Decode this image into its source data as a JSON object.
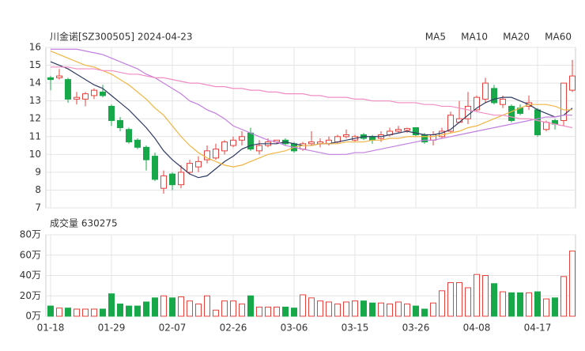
{
  "chart_data": [
    {
      "type": "candlestick",
      "title": "川金诺[SZ300505] 2024-04-23",
      "categories": [
        "01-18",
        null,
        null,
        null,
        null,
        null,
        null,
        "01-29",
        null,
        null,
        null,
        null,
        null,
        null,
        "02-07",
        null,
        null,
        null,
        null,
        null,
        null,
        "02-26",
        null,
        null,
        null,
        null,
        null,
        null,
        "03-06",
        null,
        null,
        null,
        null,
        null,
        null,
        "03-15",
        null,
        null,
        null,
        null,
        null,
        null,
        "03-26",
        null,
        null,
        null,
        null,
        null,
        null,
        "04-08",
        null,
        null,
        null,
        null,
        null,
        null,
        "04-17",
        null,
        null,
        null,
        null
      ],
      "open": [
        14.3,
        14.3,
        14.2,
        13.1,
        13.1,
        13.3,
        13.5,
        12.7,
        11.9,
        11.4,
        10.8,
        10.4,
        9.9,
        8.1,
        8.9,
        8.3,
        9.0,
        9.3,
        9.7,
        9.8,
        10.2,
        10.5,
        10.8,
        11.2,
        10.2,
        10.5,
        10.7,
        10.8,
        10.6,
        10.3,
        10.6,
        10.6,
        10.6,
        10.7,
        11.0,
        10.8,
        11.1,
        11.0,
        10.9,
        11.1,
        11.3,
        11.35,
        11.5,
        11.1,
        10.8,
        11.0,
        11.3,
        11.8,
        12.0,
        12.5,
        13.1,
        13.7,
        12.8,
        12.7,
        12.6,
        12.7,
        12.5,
        11.4,
        11.9,
        11.9,
        13.6
      ],
      "high": [
        14.4,
        14.8,
        14.3,
        13.5,
        13.5,
        13.7,
        13.9,
        12.8,
        12.1,
        11.5,
        10.9,
        10.5,
        10.1,
        9.1,
        9.0,
        9.4,
        9.7,
        9.9,
        10.5,
        10.6,
        10.8,
        11.0,
        11.3,
        11.5,
        10.8,
        10.9,
        10.8,
        10.9,
        10.7,
        10.7,
        11.3,
        10.9,
        11.0,
        11.1,
        11.4,
        11.1,
        11.2,
        11.1,
        11.3,
        11.5,
        11.6,
        11.5,
        11.5,
        11.2,
        11.3,
        11.5,
        12.4,
        13.0,
        13.5,
        13.3,
        14.3,
        13.9,
        13.3,
        12.8,
        12.8,
        13.3,
        12.6,
        11.9,
        12.0,
        14.0,
        15.3
      ],
      "low": [
        13.6,
        14.2,
        12.9,
        12.8,
        12.7,
        13.1,
        13.2,
        11.6,
        11.3,
        10.6,
        10.3,
        9.1,
        8.5,
        7.8,
        8.0,
        8.1,
        8.9,
        9.0,
        9.5,
        9.7,
        10.0,
        10.4,
        10.5,
        10.2,
        10.0,
        10.4,
        10.6,
        10.5,
        10.1,
        10.2,
        10.5,
        10.4,
        10.5,
        10.6,
        10.9,
        10.7,
        10.8,
        10.6,
        10.7,
        11.0,
        11.2,
        11.2,
        11.0,
        10.6,
        10.5,
        10.9,
        11.2,
        11.8,
        11.7,
        12.4,
        12.9,
        12.8,
        12.6,
        11.8,
        12.2,
        12.5,
        11.0,
        11.3,
        11.4,
        11.6,
        13.5
      ],
      "close": [
        14.2,
        14.4,
        13.1,
        13.2,
        13.4,
        13.6,
        13.3,
        11.9,
        11.5,
        10.7,
        10.4,
        9.7,
        8.6,
        8.8,
        8.3,
        9.0,
        9.5,
        9.6,
        10.2,
        10.3,
        10.7,
        10.8,
        11.0,
        10.3,
        10.5,
        10.7,
        10.8,
        10.6,
        10.2,
        10.6,
        10.7,
        10.7,
        10.8,
        11.0,
        11.1,
        11.0,
        10.9,
        10.8,
        11.1,
        11.3,
        11.4,
        11.45,
        11.1,
        10.7,
        11.1,
        11.3,
        12.2,
        12.0,
        12.7,
        13.2,
        14.0,
        12.9,
        13.1,
        11.9,
        12.3,
        12.9,
        11.1,
        11.8,
        11.7,
        14.0,
        14.4
      ],
      "up_color": "#e8413c",
      "down_color": "#17a84a",
      "series": [
        {
          "name": "MA5",
          "color": "#2f3b63",
          "values": [
            15.2,
            15.0,
            14.8,
            14.5,
            14.2,
            13.9,
            13.7,
            13.3,
            12.9,
            12.5,
            12.0,
            11.5,
            10.9,
            10.2,
            9.7,
            9.3,
            8.9,
            8.7,
            8.8,
            9.2,
            9.6,
            9.9,
            10.3,
            10.5,
            10.6,
            10.6,
            10.6,
            10.7,
            10.6,
            10.5,
            10.5,
            10.6,
            10.6,
            10.7,
            10.8,
            10.9,
            11.0,
            11.0,
            11.0,
            11.1,
            11.2,
            11.3,
            11.2,
            11.1,
            11.1,
            11.2,
            11.4,
            11.8,
            12.2,
            12.6,
            12.9,
            13.1,
            13.2,
            13.2,
            13.0,
            12.8,
            12.5,
            12.3,
            12.1,
            12.2,
            12.6
          ]
        },
        {
          "name": "MA10",
          "color": "#f2b544",
          "values": [
            15.8,
            15.6,
            15.4,
            15.2,
            15.0,
            14.9,
            14.7,
            14.5,
            14.2,
            13.9,
            13.5,
            13.1,
            12.6,
            12.2,
            11.6,
            11.0,
            10.5,
            10.1,
            9.8,
            9.6,
            9.4,
            9.3,
            9.4,
            9.6,
            9.8,
            10.0,
            10.1,
            10.2,
            10.4,
            10.5,
            10.5,
            10.6,
            10.6,
            10.6,
            10.7,
            10.7,
            10.7,
            10.8,
            10.8,
            10.9,
            10.9,
            11.0,
            11.0,
            11.0,
            11.0,
            11.1,
            11.2,
            11.3,
            11.5,
            11.6,
            11.8,
            12.0,
            12.2,
            12.4,
            12.6,
            12.8,
            12.8,
            12.8,
            12.7,
            12.5,
            12.5
          ]
        },
        {
          "name": "MA20",
          "color": "#c27fe0",
          "values": [
            15.9,
            15.9,
            15.9,
            15.9,
            15.8,
            15.7,
            15.6,
            15.4,
            15.2,
            15.0,
            14.8,
            14.5,
            14.3,
            14.0,
            13.7,
            13.4,
            13.0,
            12.8,
            12.5,
            12.3,
            12.0,
            11.6,
            11.4,
            11.2,
            11.0,
            10.8,
            10.7,
            10.5,
            10.4,
            10.3,
            10.2,
            10.1,
            10.0,
            10.0,
            10.0,
            10.1,
            10.1,
            10.2,
            10.3,
            10.4,
            10.5,
            10.6,
            10.7,
            10.8,
            10.8,
            10.9,
            11.0,
            11.1,
            11.2,
            11.3,
            11.4,
            11.5,
            11.6,
            11.7,
            11.8,
            11.9,
            12.0,
            12.1,
            12.1,
            12.2,
            12.2
          ]
        },
        {
          "name": "MA60",
          "color": "#f08cc4",
          "values": [
            14.9,
            14.9,
            14.9,
            14.8,
            14.8,
            14.8,
            14.7,
            14.7,
            14.6,
            14.5,
            14.5,
            14.4,
            14.3,
            14.3,
            14.2,
            14.1,
            14.0,
            14.0,
            13.9,
            13.8,
            13.8,
            13.7,
            13.7,
            13.6,
            13.6,
            13.5,
            13.5,
            13.4,
            13.4,
            13.4,
            13.3,
            13.3,
            13.2,
            13.2,
            13.2,
            13.1,
            13.1,
            13.0,
            13.0,
            13.0,
            12.9,
            12.9,
            12.9,
            12.8,
            12.8,
            12.7,
            12.7,
            12.6,
            12.5,
            12.4,
            12.3,
            12.2,
            12.2,
            12.1,
            12.0,
            12.0,
            11.9,
            11.8,
            11.7,
            11.6,
            11.5
          ]
        }
      ],
      "ylim": [
        7,
        16
      ],
      "yticks": [
        7,
        8,
        9,
        10,
        11,
        12,
        13,
        14,
        15,
        16
      ],
      "grid": true
    },
    {
      "type": "bar",
      "title": "成交量 630275",
      "values": [
        10,
        8,
        8,
        7,
        7,
        7,
        7,
        22,
        12,
        10,
        10,
        14,
        18,
        20,
        18,
        19,
        15,
        12,
        20,
        6,
        15,
        15,
        12,
        20,
        9,
        9,
        9,
        9,
        8,
        21,
        18,
        15,
        14,
        12,
        14,
        15,
        15,
        13,
        13,
        12,
        14,
        12,
        10,
        7,
        13,
        25,
        33,
        33,
        28,
        41,
        40,
        32,
        24,
        23,
        23,
        23,
        24,
        17,
        18,
        39,
        64
      ],
      "ylim": [
        0,
        80
      ],
      "yticks": [
        {
          "value": 0,
          "label": "0万"
        },
        {
          "value": 20,
          "label": "20万"
        },
        {
          "value": 40,
          "label": "40万"
        },
        {
          "value": 60,
          "label": "60万"
        },
        {
          "value": 80,
          "label": "80万"
        }
      ],
      "grid": true
    }
  ]
}
